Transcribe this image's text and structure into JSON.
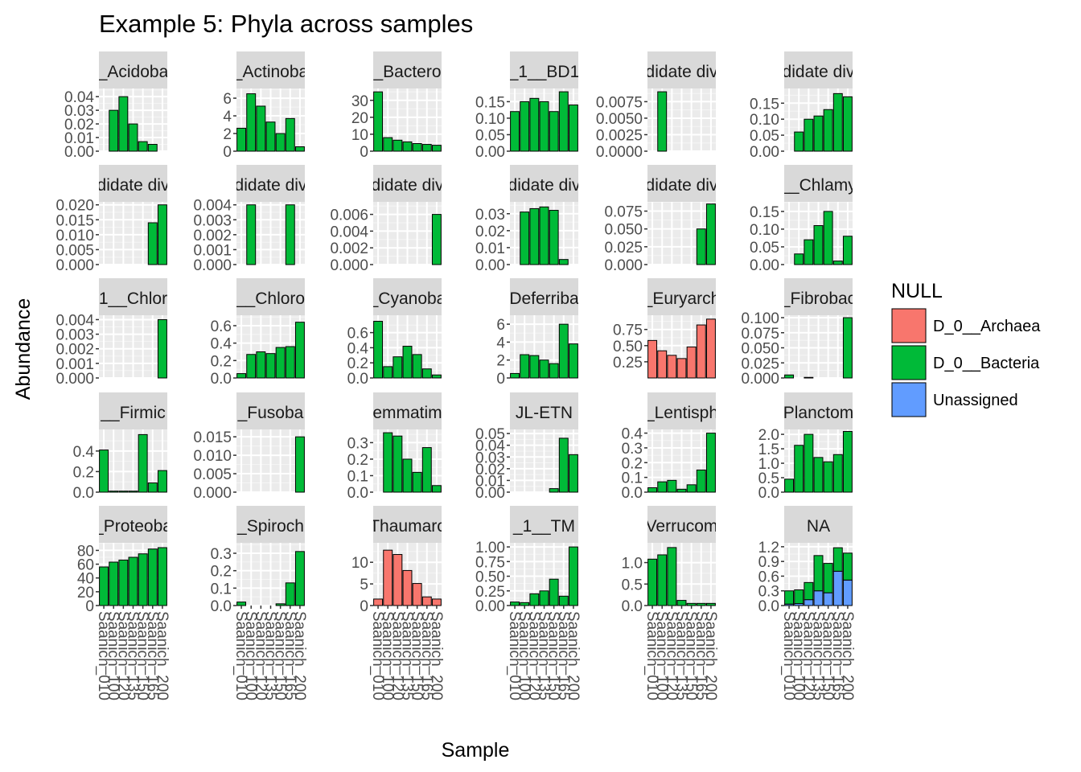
{
  "chart_data": {
    "type": "bar",
    "title": "Example 5: Phyla across samples",
    "xlabel": "Sample",
    "ylabel": "Abundance",
    "legend": {
      "title": "NULL",
      "position": "right",
      "entries": [
        {
          "label": "D_0__Archaea",
          "color": "#F8766D"
        },
        {
          "label": "D_0__Bacteria",
          "color": "#00BA38"
        },
        {
          "label": "Unassigned",
          "color": "#619CFF"
        }
      ]
    },
    "samples": [
      "Saanich_010",
      "Saanich_100",
      "Saanich_120",
      "Saanich_135",
      "Saanich_150",
      "Saanich_165",
      "Saanich_200"
    ],
    "x_tick_label": "Saanich_010",
    "x_tick_label_last": "Saanich_200",
    "scales": "free_y",
    "facets": [
      {
        "strip": "_Acidoba",
        "ticks": [
          "0.00",
          "0.01",
          "0.02",
          "0.03",
          "0.04"
        ],
        "ymax": 0.046,
        "series": [
          {
            "kingdom": "D_0__Bacteria",
            "values": [
              0.0,
              0.03,
              0.04,
              0.02,
              0.007,
              0.005,
              0.0
            ]
          }
        ]
      },
      {
        "strip": "_Actinoba",
        "ticks": [
          "0",
          "2",
          "4",
          "6"
        ],
        "ymax": 7.1,
        "series": [
          {
            "kingdom": "D_0__Bacteria",
            "values": [
              2.6,
              6.5,
              5.1,
              3.3,
              2.0,
              3.7,
              0.5
            ]
          }
        ]
      },
      {
        "strip": "_Bactero",
        "ticks": [
          "0",
          "10",
          "20",
          "30"
        ],
        "ymax": 37,
        "series": [
          {
            "kingdom": "D_0__Bacteria",
            "values": [
              35,
              8,
              6.5,
              5.5,
              4.5,
              4.0,
              3.5
            ]
          }
        ]
      },
      {
        "strip": "_1__BD1",
        "ticks": [
          "0.00",
          "0.05",
          "0.10",
          "0.15"
        ],
        "ymax": 0.19,
        "series": [
          {
            "kingdom": "D_0__Bacteria",
            "values": [
              0.12,
              0.15,
              0.16,
              0.15,
              0.12,
              0.18,
              0.14
            ]
          }
        ]
      },
      {
        "strip": "didate div",
        "ticks": [
          "0.0000",
          "0.0025",
          "0.0050",
          "0.0075"
        ],
        "ymax": 0.0095,
        "series": [
          {
            "kingdom": "D_0__Bacteria",
            "values": [
              0.0,
              0.009,
              0.0,
              0.0,
              0.0,
              0.0,
              0.0
            ]
          }
        ]
      },
      {
        "strip": "didate div",
        "ticks": [
          "0.00",
          "0.05",
          "0.10",
          "0.15"
        ],
        "ymax": 0.196,
        "series": [
          {
            "kingdom": "D_0__Bacteria",
            "values": [
              0.0,
              0.06,
              0.1,
              0.11,
              0.13,
              0.18,
              0.17
            ]
          }
        ]
      },
      {
        "strip": "didate div",
        "ticks": [
          "0.000",
          "0.005",
          "0.010",
          "0.015",
          "0.020"
        ],
        "ymax": 0.021,
        "series": [
          {
            "kingdom": "D_0__Bacteria",
            "values": [
              0.0,
              0.0,
              0.0,
              0.0,
              0.0,
              0.014,
              0.02
            ]
          }
        ]
      },
      {
        "strip": "didate div",
        "ticks": [
          "0.000",
          "0.001",
          "0.002",
          "0.003",
          "0.004"
        ],
        "ymax": 0.0042,
        "series": [
          {
            "kingdom": "D_0__Bacteria",
            "values": [
              0.0,
              0.004,
              0.0,
              0.0,
              0.0,
              0.004,
              0.0
            ]
          }
        ]
      },
      {
        "strip": "didate div",
        "ticks": [
          "0.000",
          "0.002",
          "0.004",
          "0.006"
        ],
        "ymax": 0.0075,
        "series": [
          {
            "kingdom": "D_0__Bacteria",
            "values": [
              0.0,
              0.0,
              0.0,
              0.0,
              0.0,
              0.0,
              0.006
            ]
          }
        ]
      },
      {
        "strip": "didate div",
        "ticks": [
          "0.00",
          "0.01",
          "0.02",
          "0.03"
        ],
        "ymax": 0.037,
        "series": [
          {
            "kingdom": "D_0__Bacteria",
            "values": [
              0.0,
              0.031,
              0.033,
              0.034,
              0.032,
              0.003,
              0.0
            ]
          }
        ]
      },
      {
        "strip": "didate div",
        "ticks": [
          "0.000",
          "0.025",
          "0.050",
          "0.075"
        ],
        "ymax": 0.088,
        "series": [
          {
            "kingdom": "D_0__Bacteria",
            "values": [
              0.0,
              0.0,
              0.0,
              0.0,
              0.0,
              0.05,
              0.085
            ]
          }
        ]
      },
      {
        "strip": "__Chlamy",
        "ticks": [
          "0.00",
          "0.05",
          "0.10",
          "0.15"
        ],
        "ymax": 0.177,
        "series": [
          {
            "kingdom": "D_0__Bacteria",
            "values": [
              0.0,
              0.03,
              0.07,
              0.11,
              0.15,
              0.01,
              0.08
            ]
          }
        ]
      },
      {
        "strip": "1__Chlor",
        "ticks": [
          "0.000",
          "0.001",
          "0.002",
          "0.003",
          "0.004"
        ],
        "ymax": 0.0043,
        "series": [
          {
            "kingdom": "D_0__Bacteria",
            "values": [
              0.0,
              0.0,
              0.0,
              0.0,
              0.0,
              0.0,
              0.004
            ]
          }
        ]
      },
      {
        "strip": "__Chloro",
        "ticks": [
          "0.0",
          "0.2",
          "0.4",
          "0.6"
        ],
        "ymax": 0.72,
        "series": [
          {
            "kingdom": "D_0__Bacteria",
            "values": [
              0.05,
              0.27,
              0.3,
              0.28,
              0.35,
              0.36,
              0.64
            ]
          }
        ]
      },
      {
        "strip": "_Cyanoba",
        "ticks": [
          "0.0",
          "0.2",
          "0.4",
          "0.6"
        ],
        "ymax": 0.83,
        "series": [
          {
            "kingdom": "D_0__Bacteria",
            "values": [
              0.75,
              0.15,
              0.28,
              0.42,
              0.31,
              0.12,
              0.04
            ]
          }
        ]
      },
      {
        "strip": "Deferriba",
        "ticks": [
          "0",
          "2",
          "4",
          "6"
        ],
        "ymax": 7.0,
        "series": [
          {
            "kingdom": "D_0__Bacteria",
            "values": [
              0.5,
              2.6,
              2.5,
              2.0,
              1.6,
              6.0,
              3.8
            ]
          }
        ]
      },
      {
        "strip": "_Euryarch",
        "ticks": [
          "0.25",
          "0.50",
          "0.75"
        ],
        "ymax": 0.97,
        "series": [
          {
            "kingdom": "D_0__Archaea",
            "values": [
              0.58,
              0.42,
              0.35,
              0.3,
              0.48,
              0.82,
              0.91
            ]
          }
        ]
      },
      {
        "strip": "_Fibrobac",
        "ticks": [
          "0.000",
          "0.025",
          "0.050",
          "0.075",
          "0.100"
        ],
        "ymax": 0.104,
        "series": [
          {
            "kingdom": "D_0__Bacteria",
            "values": [
              0.005,
              0.0,
              0.001,
              0.0,
              0.0,
              0.0,
              0.1
            ]
          }
        ]
      },
      {
        "strip": "__Firmic",
        "ticks": [
          "0.0",
          "0.2",
          "0.4"
        ],
        "ymax": 0.61,
        "series": [
          {
            "kingdom": "D_0__Bacteria",
            "values": [
              0.41,
              0.01,
              0.01,
              0.01,
              0.56,
              0.09,
              0.21
            ]
          }
        ]
      },
      {
        "strip": "_Fusoba",
        "ticks": [
          "0.000",
          "0.005",
          "0.010",
          "0.015"
        ],
        "ymax": 0.017,
        "series": [
          {
            "kingdom": "D_0__Bacteria",
            "values": [
              0.0,
              0.0,
              0.0,
              0.0,
              0.0,
              0.0,
              0.015
            ]
          }
        ]
      },
      {
        "strip": "emmatim",
        "ticks": [
          "0.0",
          "0.1",
          "0.2",
          "0.3"
        ],
        "ymax": 0.38,
        "series": [
          {
            "kingdom": "D_0__Bacteria",
            "values": [
              0.0,
              0.36,
              0.34,
              0.2,
              0.12,
              0.27,
              0.04
            ]
          }
        ]
      },
      {
        "strip": "JL-ETN",
        "ticks": [
          "0.00",
          "0.01",
          "0.02",
          "0.03",
          "0.04",
          "0.05"
        ],
        "ymax": 0.0535,
        "series": [
          {
            "kingdom": "D_0__Bacteria",
            "values": [
              0.0,
              0.0,
              0.0,
              0.0,
              0.003,
              0.046,
              0.032
            ]
          }
        ]
      },
      {
        "strip": "_Lentisph",
        "ticks": [
          "0.0",
          "0.1",
          "0.2",
          "0.3",
          "0.4"
        ],
        "ymax": 0.425,
        "series": [
          {
            "kingdom": "D_0__Bacteria",
            "values": [
              0.03,
              0.07,
              0.08,
              0.02,
              0.05,
              0.15,
              0.4
            ]
          }
        ]
      },
      {
        "strip": "Planctom",
        "ticks": [
          "0.0",
          "0.5",
          "1.0",
          "1.5",
          "2.0"
        ],
        "ymax": 2.17,
        "series": [
          {
            "kingdom": "D_0__Bacteria",
            "values": [
              0.45,
              1.62,
              2.0,
              1.2,
              1.05,
              1.3,
              2.1
            ]
          }
        ]
      },
      {
        "strip": "_Proteoba",
        "ticks": [
          "0",
          "20",
          "40",
          "60",
          "80"
        ],
        "ymax": 91,
        "series": [
          {
            "kingdom": "D_0__Bacteria",
            "values": [
              56,
              63,
              66,
              70,
              75,
              82,
              84
            ]
          }
        ]
      },
      {
        "strip": "_Spiroch",
        "ticks": [
          "0.0",
          "0.1",
          "0.2",
          "0.3"
        ],
        "ymax": 0.36,
        "series": [
          {
            "kingdom": "D_0__Bacteria",
            "values": [
              0.02,
              0.0,
              0.0,
              0.0,
              0.01,
              0.13,
              0.31
            ]
          }
        ]
      },
      {
        "strip": "Thaumarc",
        "ticks": [
          "0",
          "5",
          "10"
        ],
        "ymax": 14.5,
        "series": [
          {
            "kingdom": "D_0__Archaea",
            "values": [
              1.5,
              12.8,
              11.8,
              8.1,
              5.1,
              2.0,
              1.5
            ]
          }
        ]
      },
      {
        "strip": "_1__TM",
        "ticks": [
          "0.00",
          "0.25",
          "0.50",
          "0.75",
          "1.00"
        ],
        "ymax": 1.07,
        "series": [
          {
            "kingdom": "D_0__Bacteria",
            "values": [
              0.06,
              0.05,
              0.2,
              0.25,
              0.45,
              0.16,
              1.0
            ]
          }
        ]
      },
      {
        "strip": "Verrucom",
        "ticks": [
          "0.0",
          "0.5",
          "1.0"
        ],
        "ymax": 1.46,
        "series": [
          {
            "kingdom": "D_0__Bacteria",
            "values": [
              1.08,
              1.18,
              1.35,
              0.12,
              0.05,
              0.05,
              0.05
            ]
          }
        ]
      },
      {
        "strip": "NA",
        "ticks": [
          "0.0",
          "0.3",
          "0.6",
          "0.9",
          "1.2"
        ],
        "ymax": 1.28,
        "series": [
          {
            "kingdom": "Unassigned",
            "values": [
              0.03,
              0.04,
              0.12,
              0.3,
              0.26,
              0.7,
              0.52
            ]
          },
          {
            "kingdom": "D_0__Bacteria",
            "values": [
              0.27,
              0.28,
              0.35,
              0.72,
              0.6,
              0.48,
              0.55
            ]
          }
        ]
      }
    ]
  }
}
